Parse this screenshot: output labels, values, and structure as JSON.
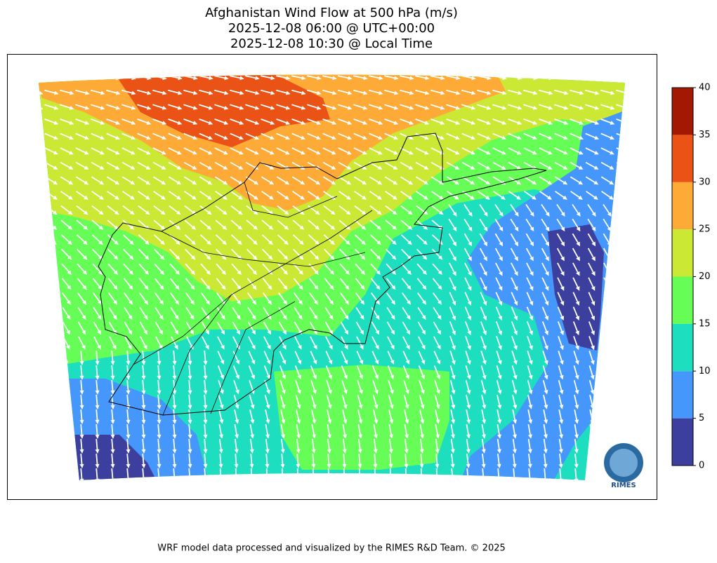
{
  "header": {
    "title": [
      "Afghanistan Wind Flow at 500 hPa (m/s)",
      "2025-12-08 06:00 @ UTC+00:00",
      "2025-12-08 10:30 @ Local Time"
    ]
  },
  "colorbar": {
    "ticks": [
      0,
      5,
      10,
      15,
      20,
      25,
      30,
      35,
      40
    ],
    "colors": [
      "#3d3f9f",
      "#4597fb",
      "#1ddfc0",
      "#66fd57",
      "#cbe934",
      "#fdaa37",
      "#ea5216",
      "#a31803"
    ]
  },
  "logo": {
    "text": "RIMES"
  },
  "footer": {
    "text": "WRF model data processed and visualized by the RIMES R&D Team. © 2025"
  }
}
